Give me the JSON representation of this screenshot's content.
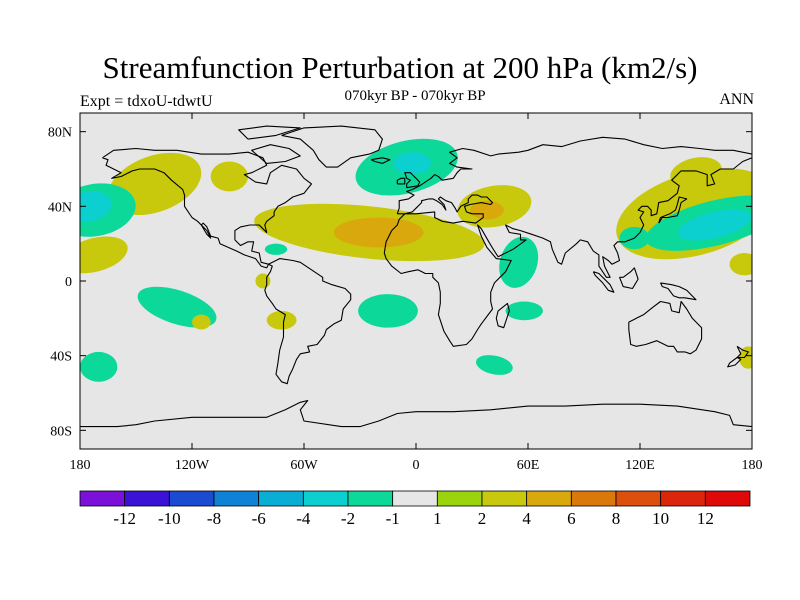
{
  "chart_data": {
    "type": "contour-map",
    "title": "Streamfunction Perturbation at 200 hPa (km2/s)",
    "subtitle": "070kyr BP - 070kyr BP",
    "left_label": "Expt = tdxoU-tdwtU",
    "right_label": "ANN",
    "x_ticks": [
      {
        "value": -180,
        "label": "180"
      },
      {
        "value": -120,
        "label": "120W"
      },
      {
        "value": -60,
        "label": "60W"
      },
      {
        "value": 0,
        "label": "0"
      },
      {
        "value": 60,
        "label": "60E"
      },
      {
        "value": 120,
        "label": "120E"
      },
      {
        "value": 180,
        "label": "180"
      }
    ],
    "y_ticks": [
      {
        "value": 80,
        "label": "80N"
      },
      {
        "value": 40,
        "label": "40N"
      },
      {
        "value": 0,
        "label": "0"
      },
      {
        "value": -40,
        "label": "40S"
      },
      {
        "value": -80,
        "label": "80S"
      }
    ],
    "xlim": [
      -180,
      180
    ],
    "ylim": [
      -90,
      90
    ],
    "colorbar": {
      "labels": [
        "-12",
        "-10",
        "-8",
        "-6",
        "-4",
        "-2",
        "-1",
        "1",
        "2",
        "4",
        "6",
        "8",
        "10",
        "12"
      ],
      "colors": [
        "#7b11d9",
        "#3b13d6",
        "#1a4bd1",
        "#0f82d6",
        "#0aaed4",
        "#0ccfd0",
        "#0cd89a",
        "#e6e6e6",
        "#99d40c",
        "#c8c80c",
        "#d8a80c",
        "#db780c",
        "#dc4f0c",
        "#dc260c",
        "#e00909"
      ]
    },
    "contour_regions": [
      {
        "name": "npac-west",
        "value": 2,
        "lon": -140,
        "lat": 52,
        "rlon": 26,
        "rlat": 15,
        "rot": -20
      },
      {
        "name": "alaska-patch",
        "value": 2,
        "lon": -100,
        "lat": 56,
        "rlon": 10,
        "rlat": 8,
        "rot": 0
      },
      {
        "name": "npac-neg",
        "value": -2,
        "lon": -172,
        "lat": 38,
        "rlon": 22,
        "rlat": 14,
        "rot": -10
      },
      {
        "name": "npac-neg-core",
        "value": -4,
        "lon": -175,
        "lat": 40,
        "rlon": 12,
        "rlat": 8,
        "rot": -10
      },
      {
        "name": "npac-subtrop",
        "value": 2,
        "lon": -172,
        "lat": 14,
        "rlon": 18,
        "rlat": 9,
        "rot": -15
      },
      {
        "name": "natl-pos",
        "value": 2,
        "lon": -25,
        "lat": 26,
        "rlon": 62,
        "rlat": 14,
        "rot": 6
      },
      {
        "name": "natl-pos-core",
        "value": 4,
        "lon": -20,
        "lat": 26,
        "rlon": 24,
        "rlat": 8,
        "rot": 0
      },
      {
        "name": "natl-neg",
        "value": -2,
        "lon": -5,
        "lat": 61,
        "rlon": 28,
        "rlat": 14,
        "rot": -14
      },
      {
        "name": "natl-neg-core",
        "value": -4,
        "lon": -2,
        "lat": 63,
        "rlon": 10,
        "rlat": 6,
        "rot": 0
      },
      {
        "name": "asia-pos",
        "value": 2,
        "lon": 42,
        "lat": 40,
        "rlon": 20,
        "rlat": 11,
        "rot": -10
      },
      {
        "name": "asia-pos-core",
        "value": 4,
        "lon": 38,
        "lat": 38,
        "rlon": 9,
        "rlat": 5,
        "rot": 0
      },
      {
        "name": "caribbean-neg",
        "value": -2,
        "lon": -75,
        "lat": 17,
        "rlon": 6,
        "rlat": 3,
        "rot": 0
      },
      {
        "name": "samerica-pos",
        "value": 2,
        "lon": -82,
        "lat": 0,
        "rlon": 4,
        "rlat": 4,
        "rot": 0
      },
      {
        "name": "spac-neg",
        "value": -2,
        "lon": -128,
        "lat": -14,
        "rlon": 22,
        "rlat": 9,
        "rot": 18
      },
      {
        "name": "spac-pos",
        "value": 2,
        "lon": -115,
        "lat": -22,
        "rlon": 5,
        "rlat": 4,
        "rot": 0
      },
      {
        "name": "arabia-neg",
        "value": -2,
        "lon": 55,
        "lat": 10,
        "rlon": 10,
        "rlat": 14,
        "rot": 18
      },
      {
        "name": "satl-neg",
        "value": -2,
        "lon": -15,
        "lat": -16,
        "rlon": 16,
        "rlat": 9,
        "rot": 0
      },
      {
        "name": "samer-south-pos",
        "value": 2,
        "lon": -72,
        "lat": -21,
        "rlon": 8,
        "rlat": 5,
        "rot": 0
      },
      {
        "name": "indian-neg",
        "value": -2,
        "lon": 58,
        "lat": -16,
        "rlon": 10,
        "rlat": 5,
        "rot": 0
      },
      {
        "name": "soceanI-neg",
        "value": -2,
        "lon": 42,
        "lat": -45,
        "rlon": 10,
        "rlat": 5,
        "rot": 12
      },
      {
        "name": "sopac-neg",
        "value": -2,
        "lon": -170,
        "lat": -46,
        "rlon": 10,
        "rlat": 8,
        "rot": 0
      },
      {
        "name": "nwpac-pos",
        "value": 2,
        "lon": 150,
        "lat": 36,
        "rlon": 44,
        "rlat": 22,
        "rot": -16
      },
      {
        "name": "nwpac-neg",
        "value": -2,
        "lon": 160,
        "lat": 31,
        "rlon": 38,
        "rlat": 12,
        "rot": -14
      },
      {
        "name": "nwpac-neg-core",
        "value": -4,
        "lon": 160,
        "lat": 30,
        "rlon": 20,
        "rlat": 7,
        "rot": -14
      },
      {
        "name": "siberia-pos",
        "value": 2,
        "lon": 150,
        "lat": 58,
        "rlon": 14,
        "rlat": 8,
        "rot": -12
      },
      {
        "name": "w-pac-pos",
        "value": 2,
        "lon": 176,
        "lat": 9,
        "rlon": 8,
        "rlat": 6,
        "rot": 0
      },
      {
        "name": "indo-neg",
        "value": -2,
        "lon": 117,
        "lat": 23,
        "rlon": 8,
        "rlat": 6,
        "rot": 0
      },
      {
        "name": "soc-pos",
        "value": 2,
        "lon": 178,
        "lat": -41,
        "rlon": 5,
        "rlat": 6,
        "rot": 0
      }
    ]
  }
}
